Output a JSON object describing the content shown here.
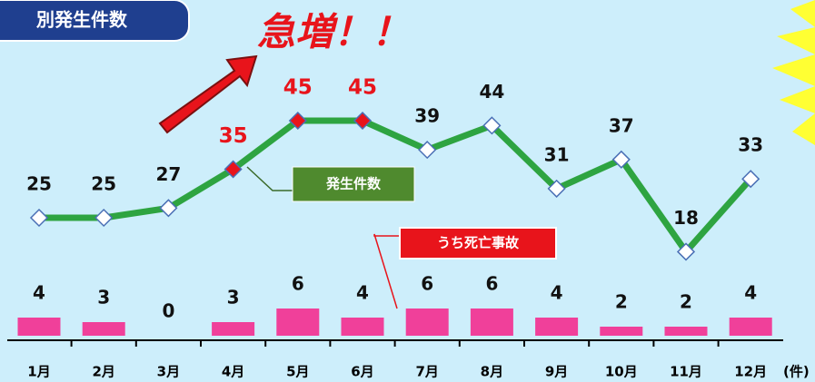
{
  "chart_data": {
    "type": "line",
    "title": "別発生件数",
    "annotation": "急増！！",
    "unit_label": "(件)",
    "categories": [
      "1月",
      "2月",
      "3月",
      "4月",
      "5月",
      "6月",
      "7月",
      "8月",
      "9月",
      "10月",
      "11月",
      "12月"
    ],
    "series": [
      {
        "name": "発生件数",
        "type": "line",
        "color": "#2ea441",
        "values": [
          25,
          25,
          27,
          35,
          45,
          45,
          39,
          44,
          31,
          37,
          18,
          33
        ],
        "highlight": [
          3,
          4,
          5
        ],
        "highlight_color": "#e8141b"
      },
      {
        "name": "うち死亡事故",
        "type": "bar",
        "color": "#f0409a",
        "values": [
          4,
          3,
          0,
          3,
          6,
          4,
          6,
          6,
          4,
          2,
          2,
          4
        ]
      }
    ]
  }
}
